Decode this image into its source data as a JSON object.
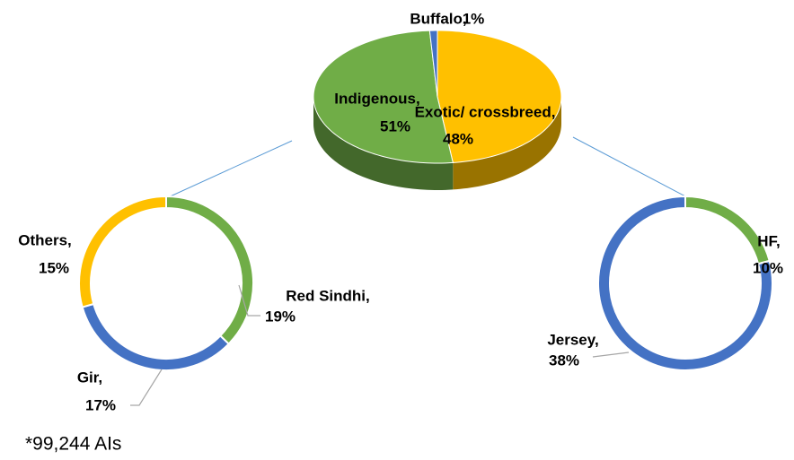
{
  "chart_data": [
    {
      "type": "pie3d",
      "categories": [
        "Exotic/ crossbreed,",
        "Indigenous,",
        "Buffalo,"
      ],
      "values": [
        48,
        51,
        1
      ],
      "value_labels": [
        "48%",
        "51%",
        "1%"
      ],
      "colors": [
        "#ffc000",
        "#70ad47",
        "#4472c4"
      ]
    },
    {
      "type": "donut",
      "categories": [
        "Red Sindhi,",
        "Gir,",
        "Others,"
      ],
      "values": [
        19,
        17,
        15
      ],
      "value_labels": [
        "19%",
        "17%",
        "15%"
      ],
      "colors": [
        "#70ad47",
        "#4472c4",
        "#ffc000"
      ]
    },
    {
      "type": "donut",
      "categories": [
        "HF,",
        "Jersey,"
      ],
      "values": [
        10,
        38
      ],
      "value_labels": [
        "10%",
        "38%"
      ],
      "colors": [
        "#70ad47",
        "#4472c4"
      ]
    }
  ],
  "footnote": "*99,244 AIs"
}
